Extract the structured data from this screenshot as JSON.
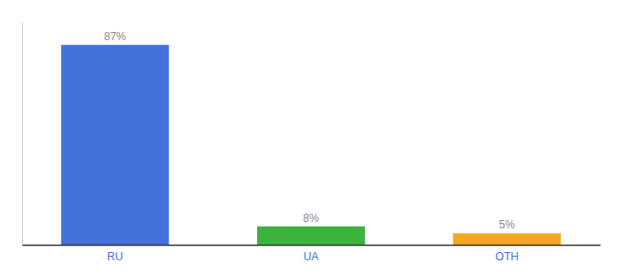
{
  "chart_data": {
    "type": "bar",
    "categories": [
      "RU",
      "UA",
      "OTH"
    ],
    "values": [
      87,
      8,
      5
    ],
    "value_labels": [
      "87%",
      "8%",
      "5%"
    ],
    "colors": [
      "#4472db",
      "#3db33d",
      "#f5a623"
    ],
    "ylim": [
      0,
      97
    ],
    "data_labels": true,
    "tick_labels": "x"
  }
}
